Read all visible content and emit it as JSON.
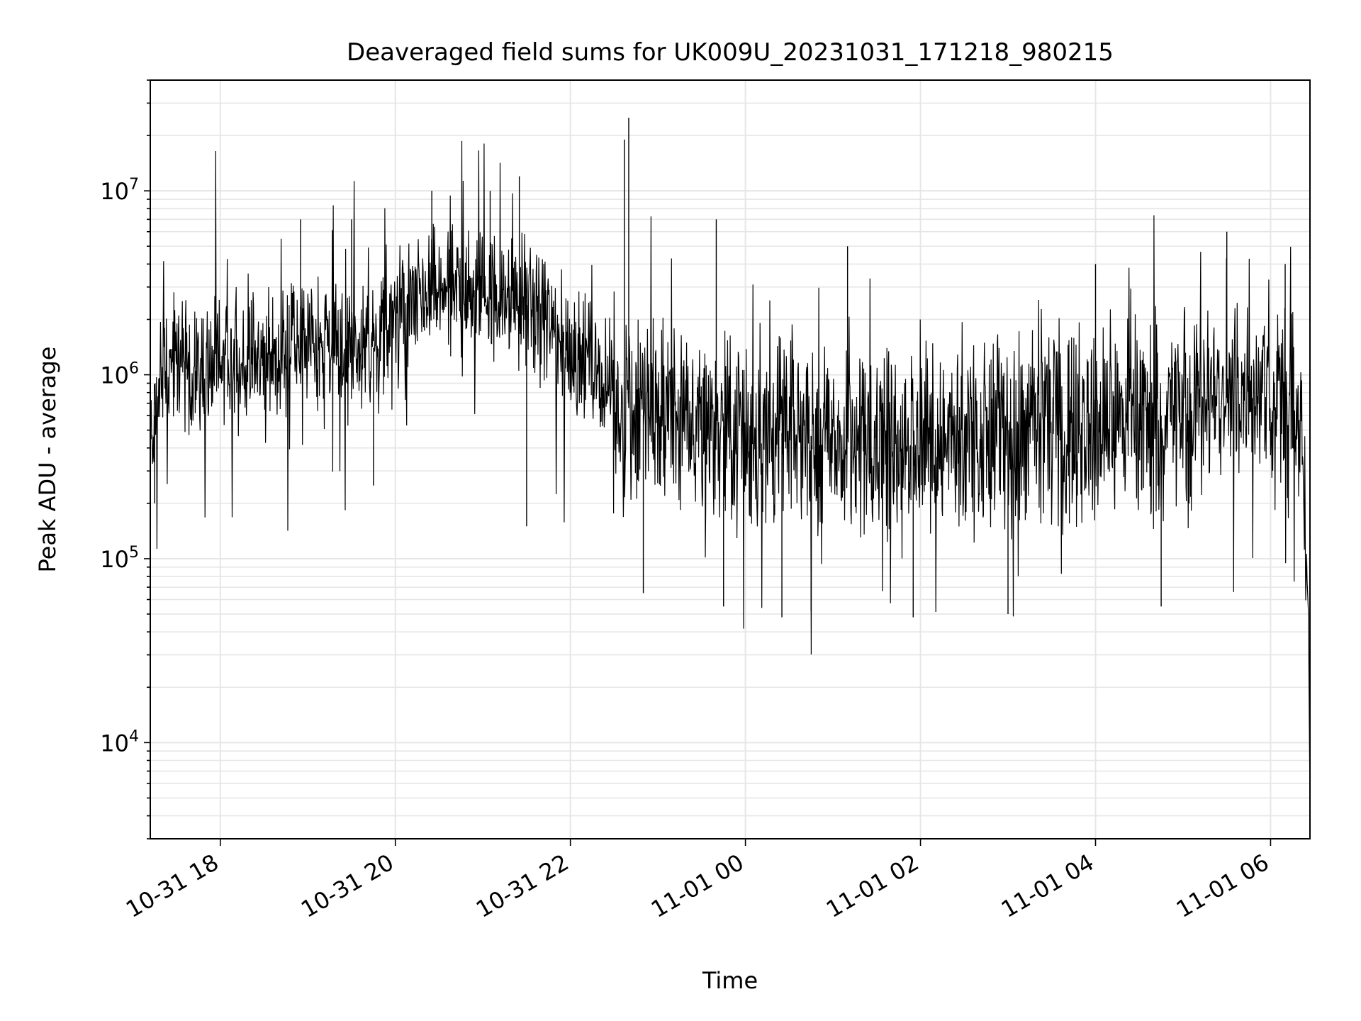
{
  "chart_data": {
    "type": "line",
    "title": "Deaveraged field sums for UK009U_20231031_171218_980215",
    "xlabel": "Time",
    "ylabel": "Peak ADU - average",
    "yscale": "log",
    "ylim": [
      3000,
      40000000
    ],
    "xlim": [
      "2023-10-31T17:12",
      "2023-11-01T06:27"
    ],
    "x_ticks": [
      "10-31 18",
      "10-31 20",
      "10-31 22",
      "11-01 00",
      "11-01 02",
      "11-01 04",
      "11-01 06"
    ],
    "y_ticks": [
      {
        "base": "10",
        "exp": "4"
      },
      {
        "base": "10",
        "exp": "5"
      },
      {
        "base": "10",
        "exp": "6"
      },
      {
        "base": "10",
        "exp": "7"
      }
    ],
    "grid": true,
    "line_color": "#000000",
    "series": [
      {
        "values": [
          [
            "2023-10-31T17:12",
            400000
          ],
          [
            "2023-10-31T17:15",
            600000
          ],
          [
            "2023-10-31T17:20",
            1000000
          ],
          [
            "2023-10-31T17:30",
            1200000
          ],
          [
            "2023-10-31T17:45",
            1100000
          ],
          [
            "2023-10-31T18:00",
            1150000
          ],
          [
            "2023-10-31T18:15",
            1100000
          ],
          [
            "2023-10-31T18:30",
            1200000
          ],
          [
            "2023-10-31T18:45",
            1400000
          ],
          [
            "2023-10-31T19:00",
            1500000
          ],
          [
            "2023-10-31T19:15",
            1500000
          ],
          [
            "2023-10-31T19:30",
            1300000
          ],
          [
            "2023-10-31T19:45",
            1400000
          ],
          [
            "2023-10-31T20:00",
            2000000
          ],
          [
            "2023-10-31T20:15",
            2500000
          ],
          [
            "2023-10-31T20:30",
            2800000
          ],
          [
            "2023-10-31T20:45",
            3000000
          ],
          [
            "2023-10-31T21:00",
            2600000
          ],
          [
            "2023-10-31T21:15",
            2500000
          ],
          [
            "2023-10-31T21:30",
            2400000
          ],
          [
            "2023-10-31T21:45",
            1800000
          ],
          [
            "2023-10-31T22:00",
            1400000
          ],
          [
            "2023-10-31T22:15",
            1200000
          ],
          [
            "2023-10-31T22:30",
            800000
          ],
          [
            "2023-10-31T22:45",
            600000
          ],
          [
            "2023-10-31T23:00",
            600000
          ],
          [
            "2023-10-31T23:30",
            550000
          ],
          [
            "2023-11-01T00:00",
            500000
          ],
          [
            "2023-11-01T00:30",
            480000
          ],
          [
            "2023-11-01T01:00",
            450000
          ],
          [
            "2023-11-01T01:30",
            450000
          ],
          [
            "2023-11-01T02:00",
            400000
          ],
          [
            "2023-11-01T02:30",
            450000
          ],
          [
            "2023-11-01T03:00",
            500000
          ],
          [
            "2023-11-01T03:30",
            500000
          ],
          [
            "2023-11-01T04:00",
            520000
          ],
          [
            "2023-11-01T04:30",
            550000
          ],
          [
            "2023-11-01T05:00",
            650000
          ],
          [
            "2023-11-01T05:30",
            750000
          ],
          [
            "2023-11-01T06:00",
            700000
          ],
          [
            "2023-11-01T06:20",
            650000
          ],
          [
            "2023-11-01T06:26",
            50000
          ],
          [
            "2023-11-01T06:27",
            4500
          ]
        ],
        "spikes": [
          [
            "2023-10-31T22:37",
            19000000
          ],
          [
            "2023-10-31T22:40",
            25000000
          ],
          [
            "2023-10-31T21:25",
            12000000
          ],
          [
            "2023-10-31T21:05",
            10000000
          ],
          [
            "2023-10-31T20:25",
            10000000
          ],
          [
            "2023-10-31T19:30",
            7000000
          ],
          [
            "2023-10-31T18:55",
            7000000
          ],
          [
            "2023-10-31T23:40",
            7000000
          ],
          [
            "2023-11-01T01:10",
            5000000
          ],
          [
            "2023-11-01T05:30",
            6000000
          ],
          [
            "2023-11-01T04:00",
            4000000
          ],
          [
            "2023-11-01T06:10",
            4000000
          ]
        ],
        "dips": [
          [
            "2023-10-31T22:50",
            65000
          ],
          [
            "2023-10-31T23:45",
            55000
          ],
          [
            "2023-11-01T00:25",
            48000
          ],
          [
            "2023-11-01T00:45",
            52000
          ],
          [
            "2023-11-01T01:55",
            48000
          ],
          [
            "2023-11-01T03:00",
            50000
          ],
          [
            "2023-11-01T04:45",
            55000
          ],
          [
            "2023-10-31T21:30",
            150000
          ],
          [
            "2023-10-31T19:45",
            250000
          ],
          [
            "2023-10-31T17:15",
            200000
          ]
        ]
      }
    ]
  }
}
